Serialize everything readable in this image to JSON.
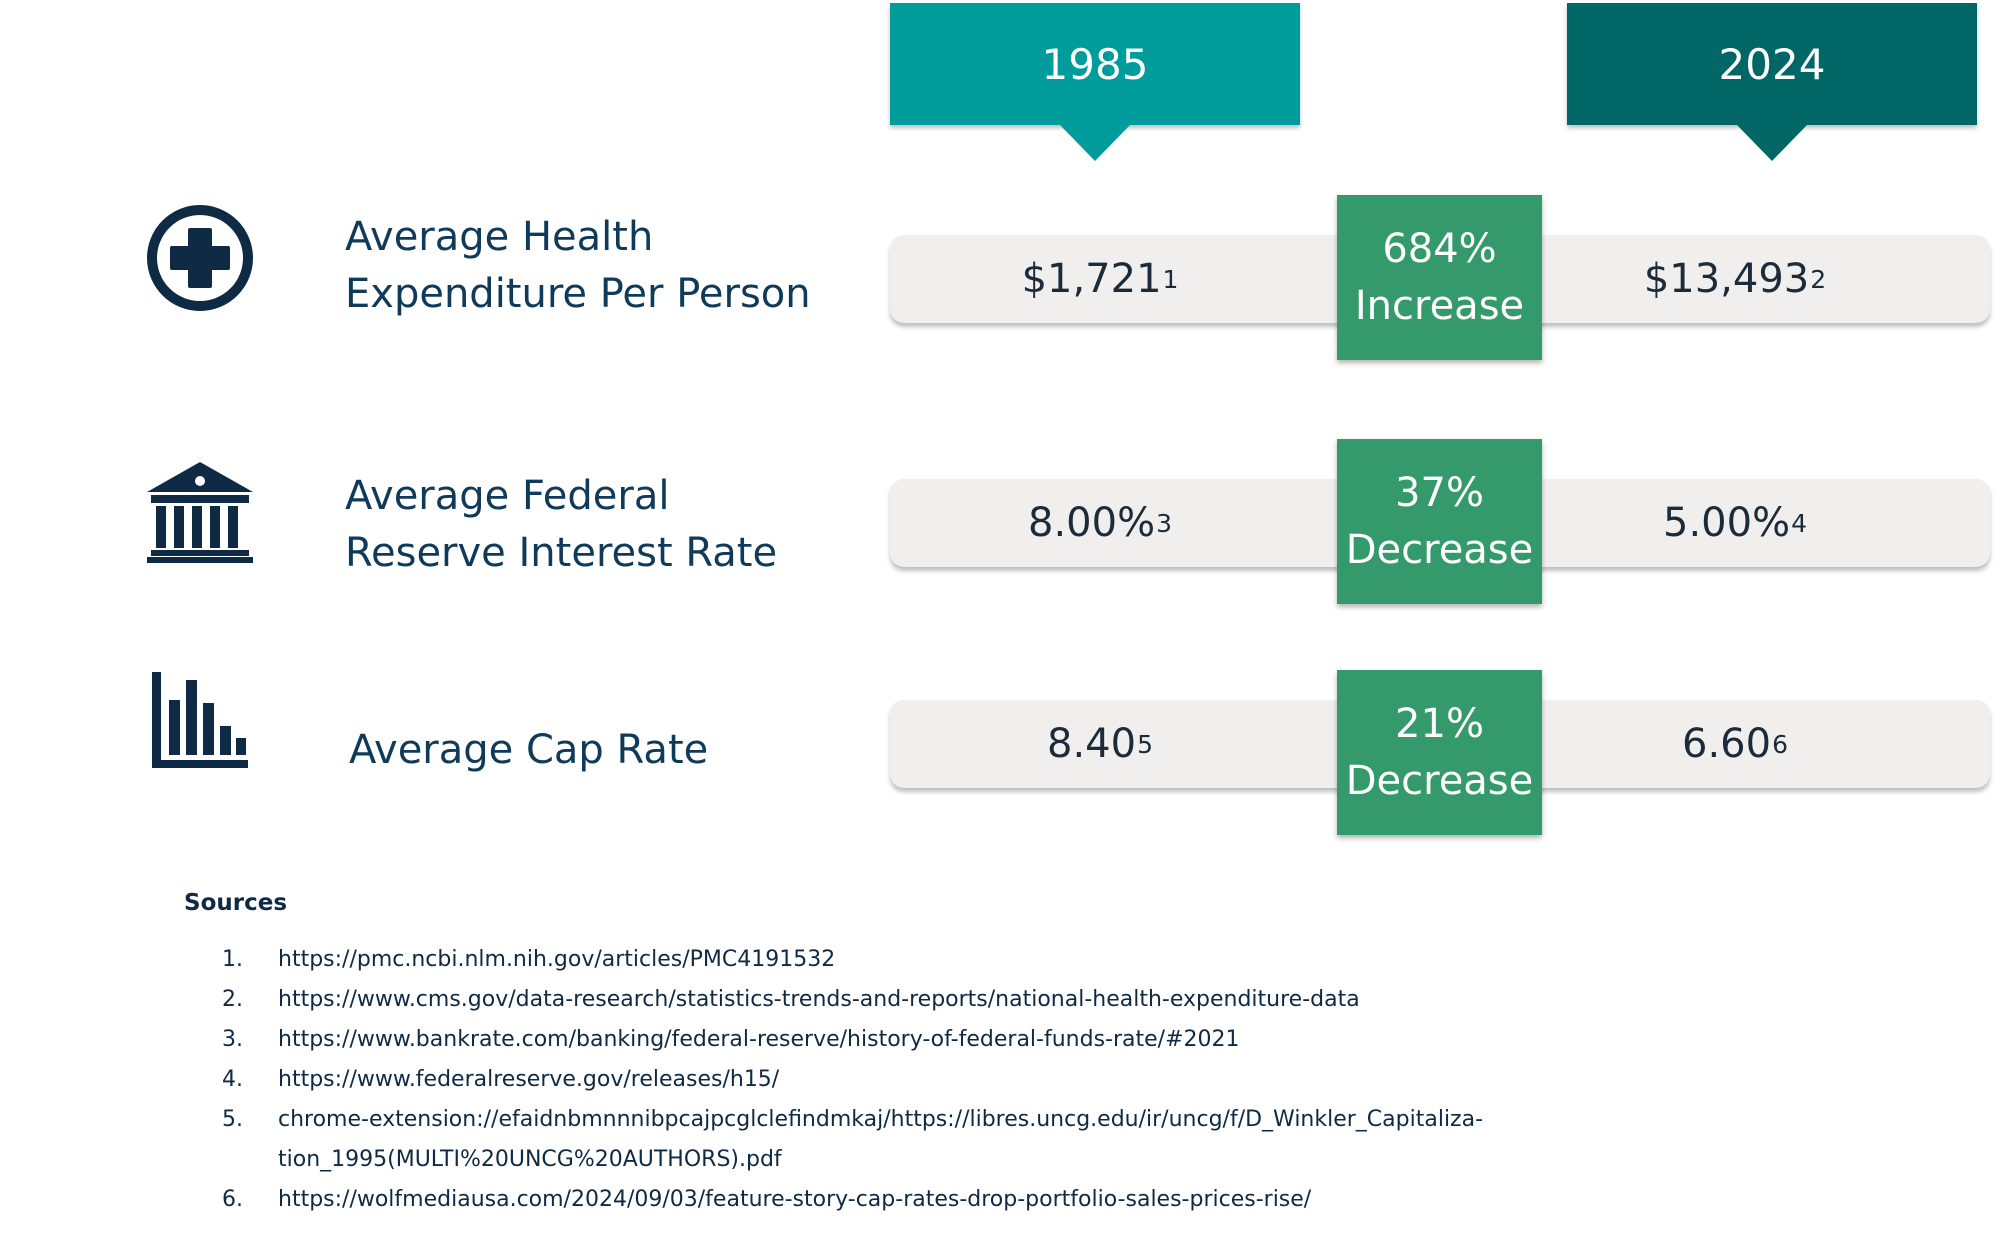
{
  "headers": {
    "left_year": "1985",
    "right_year": "2024"
  },
  "rows": [
    {
      "icon": "medical-cross-icon",
      "label_line1": "Average Health",
      "label_line2": "Expenditure Per Person",
      "value_1985": "$1,721",
      "value_1985_ref": "1",
      "value_2024": "$13,493",
      "value_2024_ref": "2",
      "change_pct": "684%",
      "change_dir": "Increase"
    },
    {
      "icon": "bank-building-icon",
      "label_line1": "Average Federal",
      "label_line2": "Reserve Interest Rate",
      "value_1985": "8.00%",
      "value_1985_ref": "3",
      "value_2024": "5.00%",
      "value_2024_ref": "4",
      "change_pct": "37%",
      "change_dir": "Decrease"
    },
    {
      "icon": "bar-chart-icon",
      "label_line1": "Average Cap Rate",
      "value_1985": "8.40",
      "value_1985_ref": "5",
      "value_2024": "6.60",
      "value_2024_ref": "6",
      "change_pct": "21%",
      "change_dir": "Decrease"
    }
  ],
  "sources": {
    "title": "Sources",
    "items": [
      {
        "num": "1.",
        "text": "https://pmc.ncbi.nlm.nih.gov/articles/PMC4191532"
      },
      {
        "num": "2.",
        "text": "https://www.cms.gov/data-research/statistics-trends-and-reports/national-health-expenditure-data"
      },
      {
        "num": "3.",
        "text": "https://www.bankrate.com/banking/federal-reserve/history-of-federal-funds-rate/#2021"
      },
      {
        "num": "4.",
        "text": "https://www.federalreserve.gov/releases/h15/"
      },
      {
        "num": "5.",
        "text": "chrome-extension://efaidnbmnnnibpcajpcglclefindmkaj/https://libres.uncg.edu/ir/uncg/f/D_Winkler_Capitaliza-",
        "text_cont": "tion_1995(MULTI%20UNCG%20AUTHORS).pdf"
      },
      {
        "num": "6.",
        "text": "https://wolfmediausa.com/2024/09/03/feature-story-cap-rates-drop-portfolio-sales-prices-rise/"
      }
    ]
  },
  "colors": {
    "header_1985": "#009b9b",
    "header_2024": "#006666",
    "change_box": "#34996b",
    "value_bar": "#f1efee",
    "icon": "#0f2a44"
  }
}
